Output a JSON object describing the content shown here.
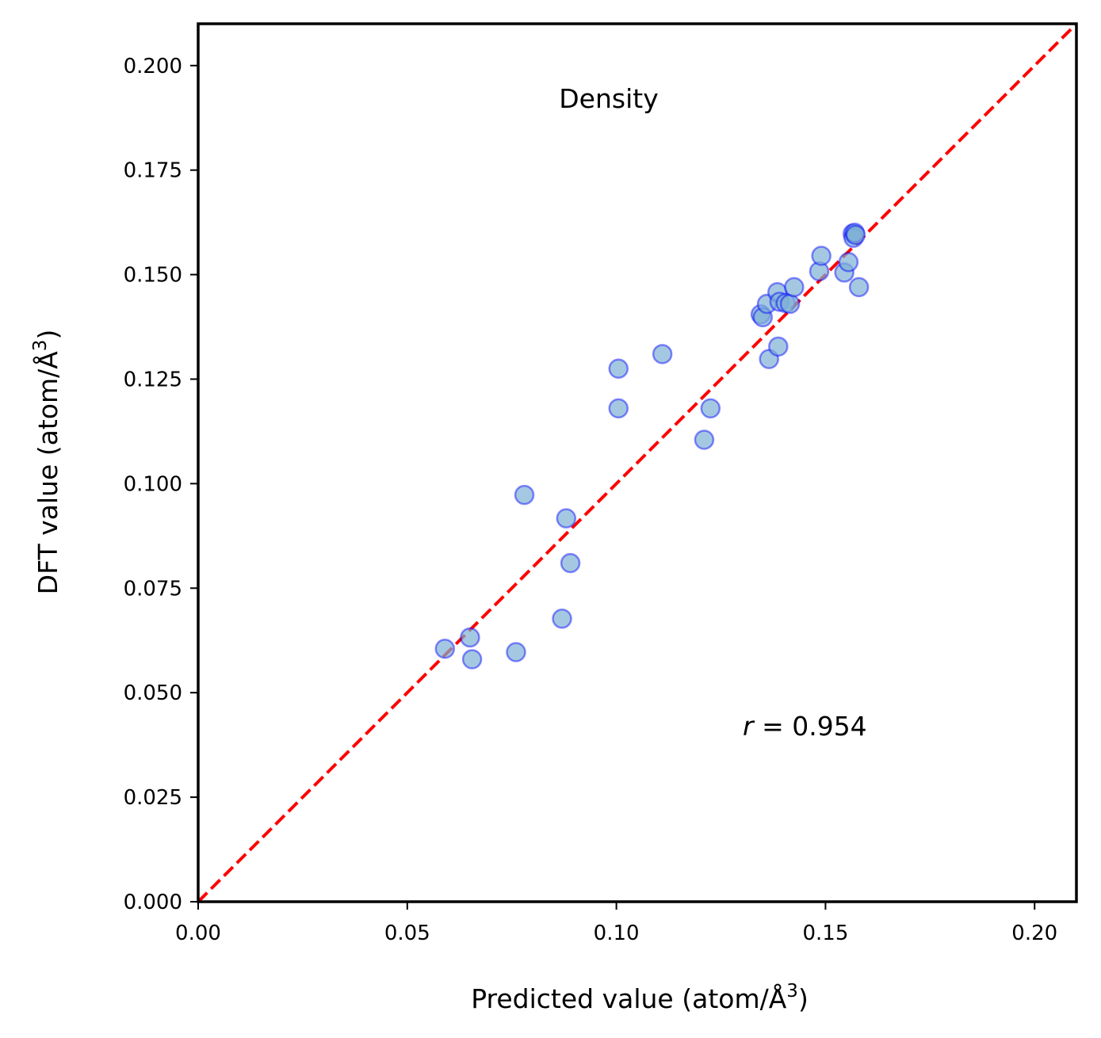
{
  "chart_data": {
    "type": "scatter",
    "title": "Density",
    "xlabel": {
      "text": "Predicted value (atom/Å",
      "sup": "3",
      "close": ")"
    },
    "ylabel": {
      "text": "DFT value (atom/Å",
      "sup": "3",
      "close": ")"
    },
    "xlim": [
      0,
      0.21
    ],
    "ylim": [
      0,
      0.21
    ],
    "x_ticks": [
      "0.00",
      "0.05",
      "0.10",
      "0.15",
      "0.20"
    ],
    "x_tick_values": [
      0,
      0.05,
      0.1,
      0.15,
      0.2
    ],
    "y_ticks": [
      "0.000",
      "0.025",
      "0.050",
      "0.075",
      "0.100",
      "0.125",
      "0.150",
      "0.175",
      "0.200"
    ],
    "y_tick_values": [
      0,
      0.025,
      0.05,
      0.075,
      0.1,
      0.125,
      0.15,
      0.175,
      0.2
    ],
    "annotation": {
      "symbol": "r",
      "text": " = 0.954"
    },
    "reference_line": {
      "style": "dashed",
      "color": "#ff0000",
      "from": [
        0,
        0
      ],
      "to": [
        0.21,
        0.21
      ]
    },
    "marker": {
      "fill": "#7fb0d6",
      "edge": "#0000ff"
    },
    "points": [
      [
        0.059,
        0.0605
      ],
      [
        0.065,
        0.0632
      ],
      [
        0.0655,
        0.058
      ],
      [
        0.076,
        0.0597
      ],
      [
        0.078,
        0.0973
      ],
      [
        0.087,
        0.0677
      ],
      [
        0.088,
        0.0917
      ],
      [
        0.089,
        0.081
      ],
      [
        0.1005,
        0.1275
      ],
      [
        0.1005,
        0.118
      ],
      [
        0.111,
        0.131
      ],
      [
        0.121,
        0.1105
      ],
      [
        0.1225,
        0.118
      ],
      [
        0.1345,
        0.1405
      ],
      [
        0.135,
        0.1398
      ],
      [
        0.136,
        0.143
      ],
      [
        0.1365,
        0.1298
      ],
      [
        0.1385,
        0.1458
      ],
      [
        0.1387,
        0.1328
      ],
      [
        0.139,
        0.1435
      ],
      [
        0.1405,
        0.1432
      ],
      [
        0.1415,
        0.143
      ],
      [
        0.1425,
        0.147
      ],
      [
        0.1485,
        0.1508
      ],
      [
        0.149,
        0.1545
      ],
      [
        0.1545,
        0.1505
      ],
      [
        0.1555,
        0.153
      ],
      [
        0.1565,
        0.1598
      ],
      [
        0.1567,
        0.1588
      ],
      [
        0.157,
        0.16
      ],
      [
        0.1572,
        0.1595
      ],
      [
        0.158,
        0.147
      ]
    ]
  }
}
